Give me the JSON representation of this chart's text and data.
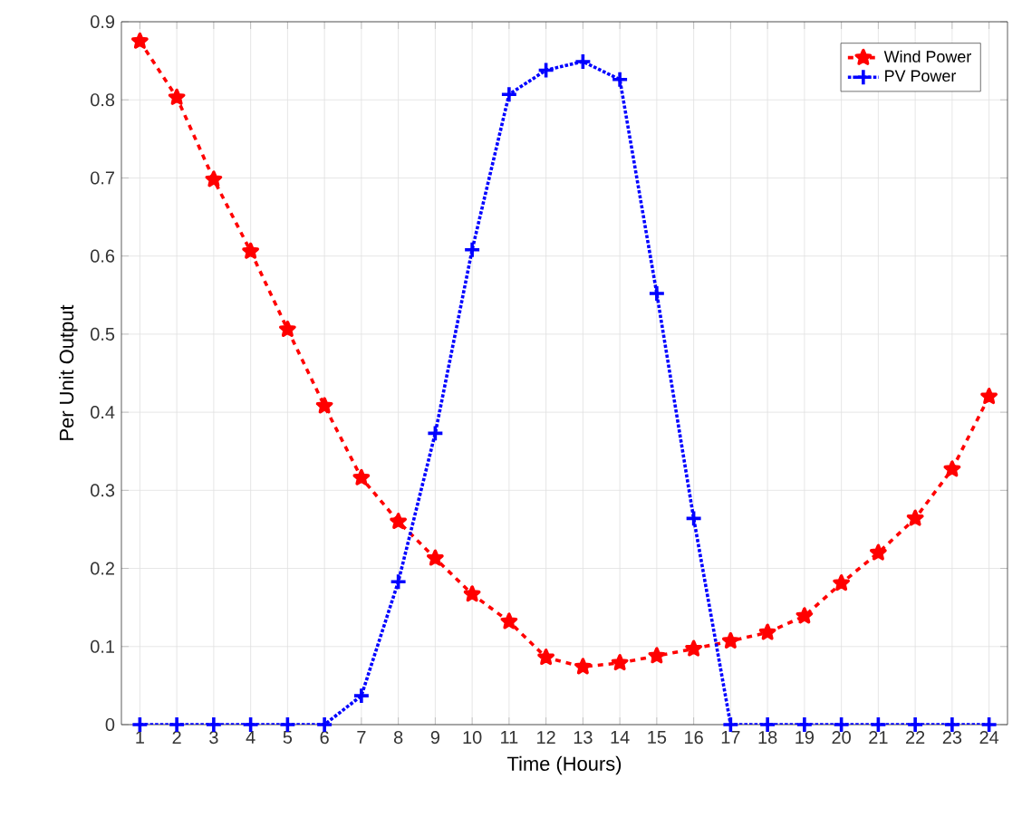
{
  "chart_data": {
    "type": "line",
    "xlabel": "Time (Hours)",
    "ylabel": "Per Unit Output",
    "x": [
      1,
      2,
      3,
      4,
      5,
      6,
      7,
      8,
      9,
      10,
      11,
      12,
      13,
      14,
      15,
      16,
      17,
      18,
      19,
      20,
      21,
      22,
      23,
      24
    ],
    "series": [
      {
        "name": "Wind Power",
        "color": "#ff0000",
        "marker": "star",
        "line_style": "dashed",
        "values": [
          0.875,
          0.803,
          0.698,
          0.606,
          0.506,
          0.408,
          0.316,
          0.26,
          0.213,
          0.167,
          0.132,
          0.086,
          0.074,
          0.079,
          0.088,
          0.097,
          0.107,
          0.118,
          0.139,
          0.181,
          0.22,
          0.264,
          0.327,
          0.42
        ]
      },
      {
        "name": "PV Power",
        "color": "#0000ff",
        "marker": "cross",
        "line_style": "dotted",
        "values": [
          0,
          0,
          0,
          0,
          0,
          0,
          0.037,
          0.183,
          0.373,
          0.608,
          0.807,
          0.838,
          0.849,
          0.826,
          0.552,
          0.264,
          0,
          0,
          0,
          0,
          0,
          0,
          0,
          0
        ]
      }
    ],
    "xlim": [
      0.5,
      24.5
    ],
    "ylim": [
      0,
      0.9
    ],
    "xticks": [
      1,
      2,
      3,
      4,
      5,
      6,
      7,
      8,
      9,
      10,
      11,
      12,
      13,
      14,
      15,
      16,
      17,
      18,
      19,
      20,
      21,
      22,
      23,
      24
    ],
    "yticks": [
      0,
      0.1,
      0.2,
      0.3,
      0.4,
      0.5,
      0.6,
      0.7,
      0.8,
      0.9
    ],
    "grid": true,
    "legend": "top right"
  }
}
